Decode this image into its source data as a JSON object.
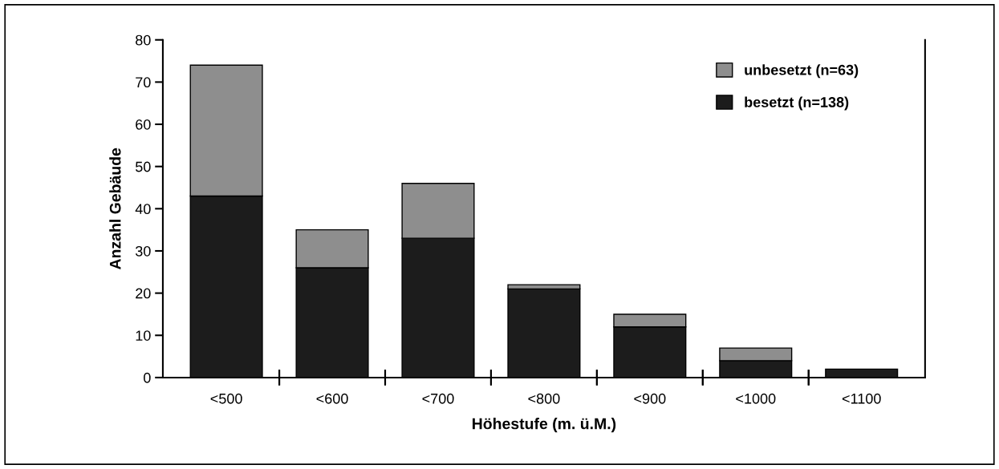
{
  "chart_data": {
    "type": "bar",
    "stacked": true,
    "xlabel": "Höhestufe (m. ü.M.)",
    "ylabel": "Anzahl Gebäude",
    "categories": [
      "<500",
      "<600",
      "<700",
      "<800",
      "<900",
      "<1000",
      "<1100"
    ],
    "series": [
      {
        "name": "besetzt (n=138)",
        "color": "#1c1c1c",
        "values": [
          43,
          26,
          33,
          21,
          12,
          4,
          2
        ]
      },
      {
        "name": "unbesetzt (n=63)",
        "color": "#8e8e8e",
        "values": [
          31,
          9,
          13,
          1,
          3,
          3,
          0
        ]
      }
    ],
    "ylim": [
      0,
      80
    ],
    "yticks": [
      0,
      10,
      20,
      30,
      40,
      50,
      60,
      70,
      80
    ],
    "grid": false,
    "legend": "top right"
  }
}
